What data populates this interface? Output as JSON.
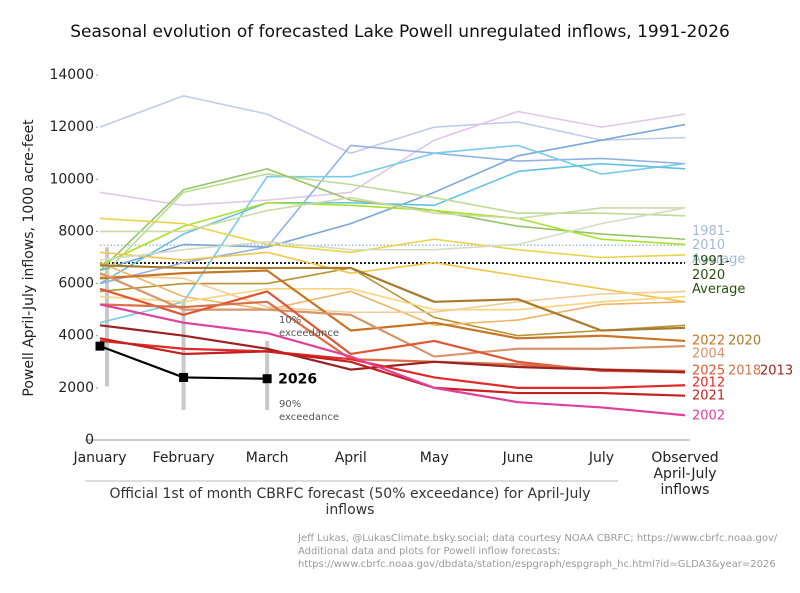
{
  "chart_data": {
    "type": "line",
    "title": "Seasonal evolution of forecasted Lake Powell unregulated inflows, 1991-2026",
    "y_label": "Powell April-July inflows, 1000 acre-feet",
    "x_label": "Official 1st of month CBRFC forecast (50% exceedance) for April-July inflows",
    "categories": [
      "January",
      "February",
      "March",
      "April",
      "May",
      "June",
      "July",
      "Observed April-July inflows"
    ],
    "ylim": [
      0,
      14000
    ],
    "yticks": [
      0,
      2000,
      4000,
      6000,
      8000,
      10000,
      12000,
      14000
    ],
    "series": [
      {
        "color": "#c4cbe9",
        "values": [
          12000,
          13200,
          12500,
          11000,
          12000,
          12200,
          11500,
          11600
        ]
      },
      {
        "color": "#e3c6ea",
        "values": [
          9500,
          9000,
          9200,
          9500,
          11500,
          12600,
          12000,
          12500
        ]
      },
      {
        "color": "#92b2e2",
        "values": [
          6000,
          6800,
          7400,
          11300,
          11000,
          10700,
          10800,
          10600
        ]
      },
      {
        "color": "#7aa8d8",
        "values": [
          6500,
          7500,
          7400,
          8300,
          9500,
          10900,
          11500,
          12100
        ]
      },
      {
        "color": "#78cbe9",
        "values": [
          4500,
          5300,
          10100,
          10100,
          11000,
          11300,
          10200,
          10600
        ]
      },
      {
        "color": "#62c2e2",
        "values": [
          6000,
          7900,
          9100,
          9100,
          9000,
          10300,
          10600,
          10400
        ]
      },
      {
        "color": "#bcdb96",
        "values": [
          6200,
          9500,
          10200,
          9800,
          9300,
          8700,
          8700,
          8600
        ]
      },
      {
        "color": "#94c466",
        "values": [
          6500,
          9600,
          10400,
          9200,
          8800,
          8200,
          7900,
          7700
        ]
      },
      {
        "color": "#a8e22a",
        "values": [
          6700,
          8200,
          9100,
          9000,
          8800,
          8500,
          7700,
          7500
        ]
      },
      {
        "color": "#e8d44a",
        "values": [
          8500,
          8300,
          7500,
          7200,
          7700,
          7300,
          7000,
          7100
        ]
      },
      {
        "color": "#cddaa8",
        "values": [
          8000,
          8000,
          8800,
          9300,
          8700,
          8500,
          8900,
          8900
        ]
      },
      {
        "color": "#b69436",
        "values": [
          5700,
          6000,
          6000,
          6600,
          4700,
          4000,
          4200,
          4400
        ]
      },
      {
        "color": "#f0c448",
        "values": [
          7200,
          6900,
          7200,
          6400,
          6800,
          6300,
          5800,
          5300
        ]
      },
      {
        "color": "#f0b466",
        "values": [
          6800,
          5500,
          5000,
          5700,
          4400,
          4600,
          5200,
          5300
        ]
      },
      {
        "color": "#f8d47a",
        "values": [
          5500,
          5300,
          5800,
          5800,
          5000,
          5000,
          5300,
          5500
        ]
      },
      {
        "color": "#f2cc96",
        "values": [
          6300,
          6200,
          5100,
          4900,
          4900,
          5300,
          5600,
          5700
        ]
      },
      {
        "color": "#d4dcc4",
        "values": [
          6900,
          7300,
          7600,
          7300,
          7300,
          7500,
          8300,
          8900
        ]
      },
      {
        "name": "2022",
        "color": "#c87422",
        "values": [
          6200,
          6400,
          6500,
          4200,
          4500,
          3900,
          4000,
          3800
        ]
      },
      {
        "name": "2020",
        "color": "#a87a2c",
        "values": [
          6700,
          6600,
          6600,
          6600,
          5300,
          5400,
          4200,
          4300
        ]
      },
      {
        "name": "2004",
        "color": "#d8946a",
        "values": [
          6400,
          5000,
          5000,
          4800,
          3200,
          3500,
          3500,
          3600
        ]
      },
      {
        "name": "2025",
        "color": "#e05632",
        "values": [
          5800,
          4800,
          5700,
          3300,
          3800,
          3000,
          2650,
          2600
        ]
      },
      {
        "name": "2018",
        "color": "#d87048",
        "values": [
          5200,
          5100,
          5300,
          3100,
          3000,
          2900,
          2700,
          2650
        ]
      },
      {
        "name": "2013",
        "color": "#9b2222",
        "values": [
          4400,
          4000,
          3500,
          2700,
          3000,
          2800,
          2700,
          2600
        ]
      },
      {
        "name": "2012",
        "color": "#e02a2a",
        "values": [
          3800,
          3500,
          3400,
          3100,
          2400,
          2000,
          2000,
          2100
        ]
      },
      {
        "name": "2021",
        "color": "#c42020",
        "values": [
          3900,
          3300,
          3400,
          3000,
          2000,
          1800,
          1800,
          1700
        ]
      },
      {
        "name": "2002",
        "color": "#e0409c",
        "values": [
          5200,
          4500,
          4100,
          3200,
          2000,
          1450,
          1250,
          950
        ]
      },
      {
        "name": "2026",
        "color": "#000000",
        "values": [
          3600,
          2400,
          2350,
          null,
          null,
          null,
          null,
          null
        ]
      }
    ],
    "exceedance_10": [
      7400,
      5400,
      3800
    ],
    "exceedance_90": [
      2050,
      1150,
      1150
    ],
    "range_color": "#c8c8c8",
    "exceedance_10_label": "10% exceedance",
    "exceedance_90_label": "90% exceedance",
    "reference_lines": [
      {
        "name": "1981-2010 Average",
        "value": 7470,
        "color": "#a4bad8"
      },
      {
        "name": "1991-2020 Average",
        "value": 6790,
        "color": "#222222"
      }
    ],
    "source": [
      "Jeff Lukas, @LukasClimate.bsky.social; data courtesy NOAA CBRFC; https://www.cbrfc.noaa.gov/",
      "Additional data and plots for Powell inflow forecasts:",
      "https://www.cbrfc.noaa.gov/dbdata/station/espgraph/espgraph_hc.html?id=GLDA3&year=2026"
    ]
  }
}
